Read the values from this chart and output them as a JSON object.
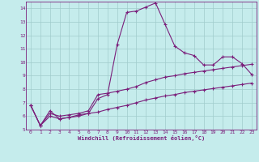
{
  "xlabel": "Windchill (Refroidissement éolien,°C)",
  "bg_color": "#c5ecec",
  "line_color": "#7b1f7b",
  "grid_color": "#a0cccc",
  "xlim": [
    -0.5,
    23.5
  ],
  "ylim": [
    5,
    14.5
  ],
  "xticks": [
    0,
    1,
    2,
    3,
    4,
    5,
    6,
    7,
    8,
    9,
    10,
    11,
    12,
    13,
    14,
    15,
    16,
    17,
    18,
    19,
    20,
    21,
    22,
    23
  ],
  "yticks": [
    5,
    6,
    7,
    8,
    9,
    10,
    11,
    12,
    13,
    14
  ],
  "series1_x": [
    0,
    1,
    2,
    3,
    4,
    5,
    6,
    7,
    8,
    9,
    10,
    11,
    12,
    13,
    14,
    15,
    16,
    17,
    18,
    19,
    20,
    21,
    22,
    23
  ],
  "series1_y": [
    6.8,
    5.3,
    6.4,
    5.8,
    5.9,
    6.1,
    6.2,
    7.3,
    7.6,
    11.3,
    13.7,
    13.8,
    14.1,
    14.4,
    12.8,
    11.2,
    10.7,
    10.5,
    9.8,
    9.8,
    10.4,
    10.4,
    9.9,
    9.1
  ],
  "series2_x": [
    0,
    1,
    2,
    3,
    4,
    5,
    6,
    7,
    8,
    9,
    10,
    11,
    12,
    13,
    14,
    15,
    16,
    17,
    18,
    19,
    20,
    21,
    22,
    23
  ],
  "series2_y": [
    6.8,
    5.3,
    6.2,
    6.0,
    6.1,
    6.2,
    6.4,
    7.6,
    7.7,
    7.85,
    8.0,
    8.2,
    8.5,
    8.7,
    8.9,
    9.0,
    9.15,
    9.25,
    9.35,
    9.45,
    9.55,
    9.65,
    9.75,
    9.85
  ],
  "series3_x": [
    0,
    1,
    2,
    3,
    4,
    5,
    6,
    7,
    8,
    9,
    10,
    11,
    12,
    13,
    14,
    15,
    16,
    17,
    18,
    19,
    20,
    21,
    22,
    23
  ],
  "series3_y": [
    6.8,
    5.3,
    6.0,
    5.8,
    5.9,
    6.0,
    6.2,
    6.3,
    6.5,
    6.65,
    6.8,
    7.0,
    7.2,
    7.35,
    7.5,
    7.6,
    7.75,
    7.85,
    7.95,
    8.05,
    8.15,
    8.25,
    8.35,
    8.45
  ]
}
